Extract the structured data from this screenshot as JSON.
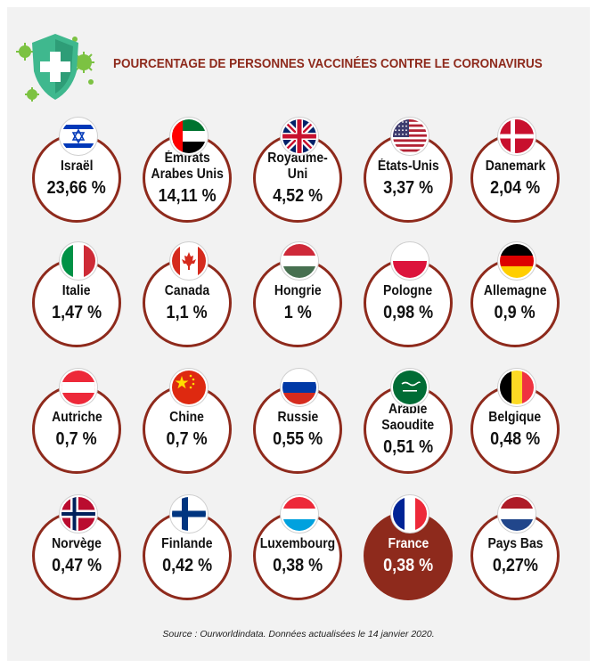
{
  "title": "POURCENTAGE DE PERSONNES VACCINÉES CONTRE LE CORONAVIRUS",
  "logo_icon": "shield-cross-virus-icon",
  "colors": {
    "accent": "#8e2a1c",
    "panel": "#f2f2f2",
    "virus": "#7cc242",
    "shield": "#3fb88e"
  },
  "countries": [
    {
      "name": "Israël",
      "value": "23,66 %",
      "flag": "israel"
    },
    {
      "name": "Émirats\nArabes Unis",
      "value": "14,11 %",
      "flag": "uae"
    },
    {
      "name": "Royaume-Uni",
      "value": "4,52 %",
      "flag": "uk"
    },
    {
      "name": "États-Unis",
      "value": "3,37 %",
      "flag": "usa"
    },
    {
      "name": "Danemark",
      "value": "2,04 %",
      "flag": "denmark"
    },
    {
      "name": "Italie",
      "value": "1,47 %",
      "flag": "italy"
    },
    {
      "name": "Canada",
      "value": "1,1 %",
      "flag": "canada"
    },
    {
      "name": "Hongrie",
      "value": "1 %",
      "flag": "hungary"
    },
    {
      "name": "Pologne",
      "value": "0,98 %",
      "flag": "poland"
    },
    {
      "name": "Allemagne",
      "value": "0,9 %",
      "flag": "germany"
    },
    {
      "name": "Autriche",
      "value": "0,7 %",
      "flag": "austria"
    },
    {
      "name": "Chine",
      "value": "0,7 %",
      "flag": "china"
    },
    {
      "name": "Russie",
      "value": "0,55 %",
      "flag": "russia"
    },
    {
      "name": "Arabie\nSaoudite",
      "value": "0,51 %",
      "flag": "saudi"
    },
    {
      "name": "Belgique",
      "value": "0,48 %",
      "flag": "belgium"
    },
    {
      "name": "Norvège",
      "value": "0,47 %",
      "flag": "norway"
    },
    {
      "name": "Finlande",
      "value": "0,42 %",
      "flag": "finland"
    },
    {
      "name": "Luxembourg",
      "value": "0,38 %",
      "flag": "luxembourg"
    },
    {
      "name": "France",
      "value": "0,38 %",
      "flag": "france",
      "highlight": true
    },
    {
      "name": "Pays Bas",
      "value": "0,27%",
      "flag": "netherlands"
    }
  ],
  "source": "Source : Ourworldindata. Données actualisées le 14 janvier 2020."
}
